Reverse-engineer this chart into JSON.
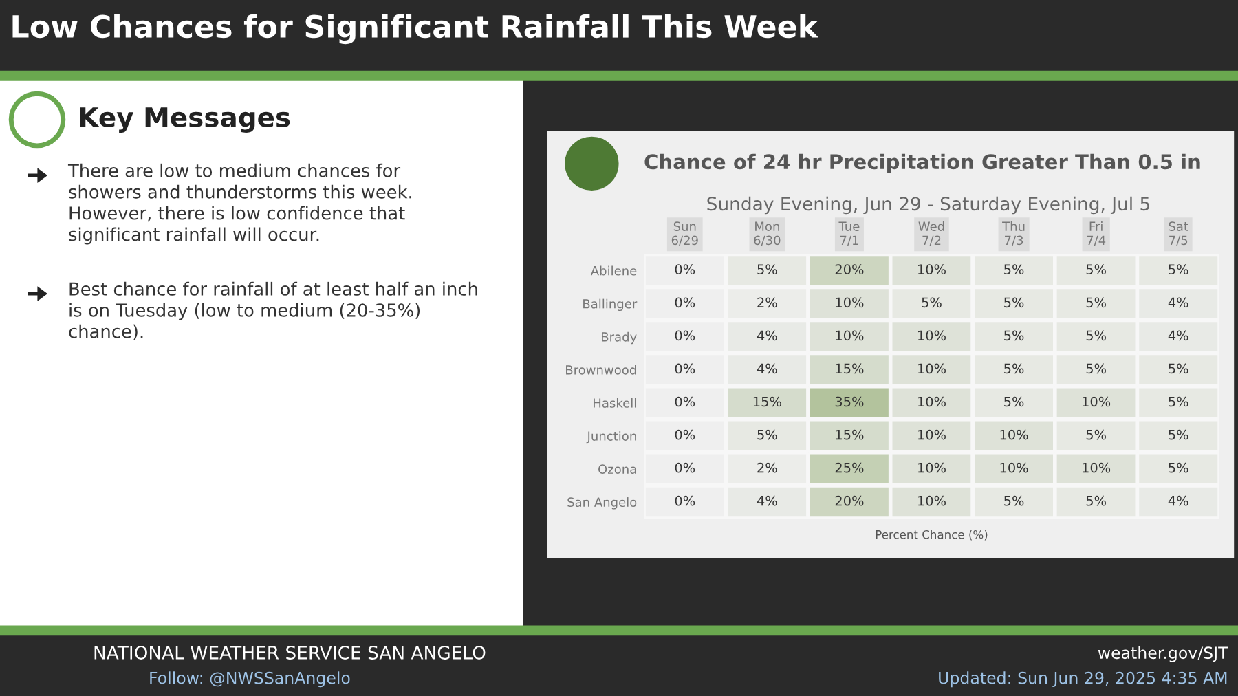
{
  "chart_data": {
    "type": "heatmap",
    "title": "Chance of 24 hr Precipitation Greater Than 0.5 in",
    "subtitle": "Sunday Evening, Jun 29 - Saturday Evening, Jul 5",
    "xlabel": "Percent Chance (%)",
    "categories": [
      "Sun\n6/29",
      "Mon\n6/30",
      "Tue\n7/1",
      "Wed\n7/2",
      "Thu\n7/3",
      "Fri\n7/4",
      "Sat\n7/5"
    ],
    "y_categories": [
      "Abilene",
      "Ballinger",
      "Brady",
      "Brownwood",
      "Haskell",
      "Junction",
      "Ozona",
      "San Angelo"
    ],
    "cells": [
      [
        0,
        5,
        20,
        10,
        5,
        5,
        5
      ],
      [
        0,
        2,
        10,
        5,
        5,
        5,
        4
      ],
      [
        0,
        4,
        10,
        10,
        5,
        5,
        4
      ],
      [
        0,
        4,
        15,
        10,
        5,
        5,
        5
      ],
      [
        0,
        15,
        35,
        10,
        5,
        10,
        5
      ],
      [
        0,
        5,
        15,
        10,
        10,
        5,
        5
      ],
      [
        0,
        2,
        25,
        10,
        10,
        10,
        5
      ],
      [
        0,
        4,
        20,
        10,
        5,
        5,
        4
      ]
    ],
    "cell_labels": [
      [
        "0%",
        "5%",
        "20%",
        "10%",
        "5%",
        "5%",
        "5%"
      ],
      [
        "0%",
        "2%",
        "10%",
        "5%",
        "5%",
        "5%",
        "4%"
      ],
      [
        "0%",
        "4%",
        "10%",
        "10%",
        "5%",
        "5%",
        "4%"
      ],
      [
        "0%",
        "4%",
        "15%",
        "10%",
        "5%",
        "5%",
        "5%"
      ],
      [
        "0%",
        "15%",
        "35%",
        "10%",
        "5%",
        "10%",
        "5%"
      ],
      [
        "0%",
        "5%",
        "15%",
        "10%",
        "10%",
        "5%",
        "5%"
      ],
      [
        "0%",
        "2%",
        "25%",
        "10%",
        "10%",
        "10%",
        "5%"
      ],
      [
        "0%",
        "4%",
        "20%",
        "10%",
        "5%",
        "5%",
        "4%"
      ]
    ],
    "annotations": [
      "Low Chances for Significant Rainfall This Week",
      "Key Messages",
      "There are low to medium chances for\nshowers and thunderstorms this week.\nHowever, there is low confidence that\nsignificant rainfall will occur.",
      "Best chance for rainfall of at least half an inch\nis on Tuesday (low to medium (20-35%)\nchance).",
      "NATIONAL WEATHER SERVICE SAN ANGELO",
      "Follow: @NWSSanAngelo",
      "weather.gov/SJT",
      "Updated: Sun Jun 29, 2025 4:35 AM"
    ]
  }
}
